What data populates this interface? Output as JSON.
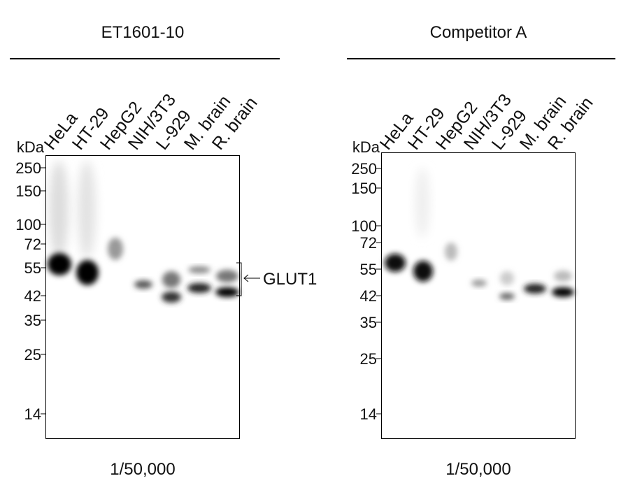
{
  "panels": [
    {
      "title": "ET1601-10",
      "lanes": [
        "HeLa",
        "HT-29",
        "HepG2",
        "NIH/3T3",
        "L-929",
        "M. brain",
        "R. brain"
      ],
      "unit": "kDa",
      "markers": [
        "250",
        "150",
        "100",
        "72",
        "55",
        "42",
        "35",
        "25",
        "14"
      ],
      "annotation": "GLUT1",
      "dilution": "1/50,000"
    },
    {
      "title": "Competitor A",
      "lanes": [
        "HeLa",
        "HT-29",
        "HepG2",
        "NIH/3T3",
        "L-929",
        "M. brain",
        "R. brain"
      ],
      "unit": "kDa",
      "markers": [
        "250",
        "150",
        "100",
        "72",
        "55",
        "42",
        "35",
        "25",
        "14"
      ],
      "dilution": "1/50,000"
    }
  ]
}
